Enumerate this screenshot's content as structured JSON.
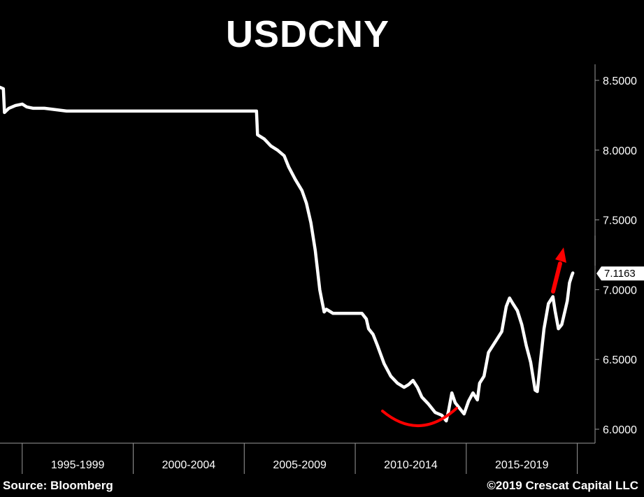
{
  "chart_data": {
    "type": "line",
    "title": "USDCNY",
    "x_labels": [
      "1995-1999",
      "2000-2004",
      "2005-2009",
      "2010-2014",
      "2015-2019"
    ],
    "y_ticks": [
      6.0,
      6.5,
      7.0,
      7.5,
      8.0,
      8.5
    ],
    "y_tick_labels": [
      "6.0000",
      "6.5000",
      "7.0000",
      "7.5000",
      "8.0000",
      "8.5000"
    ],
    "ylim": [
      5.9,
      8.6
    ],
    "xlim": [
      1994.0,
      2020.8
    ],
    "last_value": 7.1163,
    "last_value_label": "7.1163",
    "series": [
      {
        "x": [
          1994.0,
          1994.15,
          1994.2,
          1994.4,
          1994.7,
          1995.0,
          1995.2,
          1995.5,
          1996.0,
          1996.5,
          1997.0,
          1998.0,
          1999.0,
          2000.0,
          2001.0,
          2002.0,
          2003.0,
          2004.0,
          2005.0,
          2005.3,
          2005.55,
          2005.6,
          2005.9,
          2006.2,
          2006.5,
          2006.8,
          2007.0,
          2007.3,
          2007.6,
          2007.8,
          2008.0,
          2008.2,
          2008.4,
          2008.5,
          2008.6,
          2008.7,
          2008.9,
          2009.0,
          2009.5,
          2010.0,
          2010.3,
          2010.5,
          2010.6,
          2010.8,
          2011.0,
          2011.3,
          2011.6,
          2011.9,
          2012.2,
          2012.4,
          2012.6,
          2012.8,
          2013.0,
          2013.3,
          2013.6,
          2013.9,
          2014.1,
          2014.2,
          2014.35,
          2014.5,
          2014.7,
          2014.9,
          2015.1,
          2015.3,
          2015.5,
          2015.6,
          2015.8,
          2016.0,
          2016.2,
          2016.4,
          2016.6,
          2016.8,
          2016.95,
          2017.1,
          2017.3,
          2017.5,
          2017.7,
          2017.9,
          2018.1,
          2018.2,
          2018.35,
          2018.5,
          2018.7,
          2018.9,
          2019.0,
          2019.15,
          2019.3,
          2019.45,
          2019.55,
          2019.65,
          2019.75,
          2019.8
        ],
        "y": [
          8.45,
          8.44,
          8.27,
          8.3,
          8.32,
          8.33,
          8.31,
          8.3,
          8.3,
          8.29,
          8.28,
          8.28,
          8.28,
          8.28,
          8.28,
          8.28,
          8.28,
          8.28,
          8.28,
          8.28,
          8.28,
          8.11,
          8.08,
          8.03,
          8.0,
          7.96,
          7.88,
          7.79,
          7.71,
          7.62,
          7.48,
          7.28,
          7.0,
          6.92,
          6.84,
          6.86,
          6.84,
          6.83,
          6.83,
          6.83,
          6.83,
          6.79,
          6.72,
          6.68,
          6.6,
          6.47,
          6.38,
          6.33,
          6.3,
          6.32,
          6.35,
          6.3,
          6.23,
          6.18,
          6.12,
          6.1,
          6.06,
          6.13,
          6.26,
          6.19,
          6.15,
          6.11,
          6.2,
          6.26,
          6.21,
          6.33,
          6.38,
          6.55,
          6.6,
          6.65,
          6.7,
          6.88,
          6.94,
          6.9,
          6.85,
          6.75,
          6.6,
          6.48,
          6.28,
          6.27,
          6.5,
          6.72,
          6.9,
          6.95,
          6.85,
          6.72,
          6.75,
          6.85,
          6.92,
          7.05,
          7.1,
          7.12
        ]
      }
    ]
  },
  "footer": {
    "source": "Source: Bloomberg",
    "copyright": "©2019 Crescat Capital LLC"
  },
  "annotations": {
    "curve_color": "#ff0000",
    "arrow_color": "#ff0000"
  }
}
